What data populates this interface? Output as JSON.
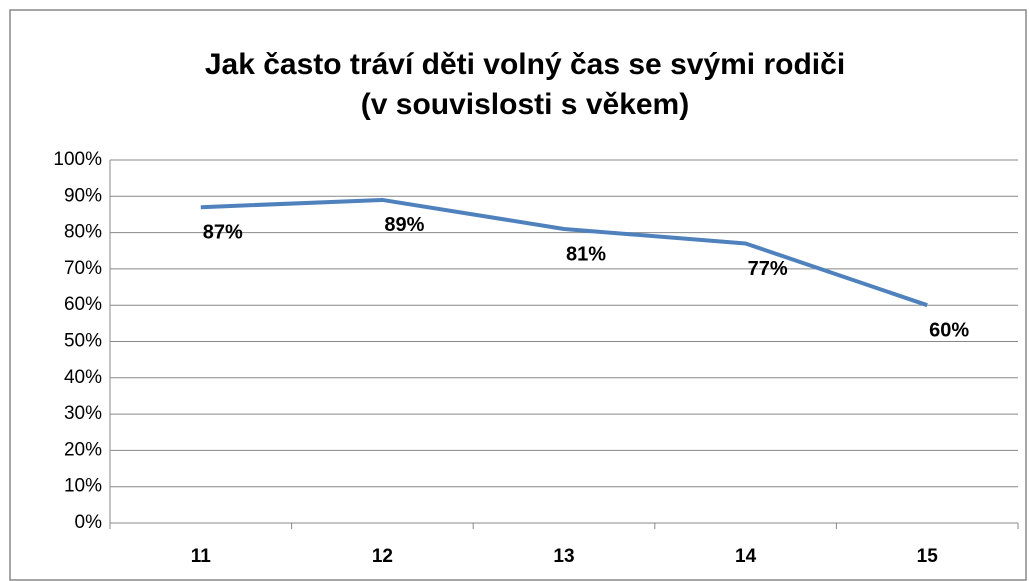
{
  "chart_data": {
    "type": "line",
    "title": [
      "Jak často tráví děti volný čas se svými rodiči",
      "(v souvislosti s věkem)"
    ],
    "categories": [
      "11",
      "12",
      "13",
      "14",
      "15"
    ],
    "series": [
      {
        "color": "#4f81bd",
        "values": [
          87,
          89,
          81,
          77,
          60
        ],
        "value_labels": [
          "87%",
          "89%",
          "81%",
          "77%",
          "60%"
        ]
      }
    ],
    "ylim": [
      0,
      100
    ],
    "yticks": [
      {
        "value": 0,
        "label": "0%"
      },
      {
        "value": 10,
        "label": "10%"
      },
      {
        "value": 20,
        "label": "20%"
      },
      {
        "value": 30,
        "label": "30%"
      },
      {
        "value": 40,
        "label": "40%"
      },
      {
        "value": 50,
        "label": "50%"
      },
      {
        "value": 60,
        "label": "60%"
      },
      {
        "value": 70,
        "label": "70%"
      },
      {
        "value": 80,
        "label": "80%"
      },
      {
        "value": 90,
        "label": "90%"
      },
      {
        "value": 100,
        "label": "100%"
      }
    ],
    "grid": true
  }
}
